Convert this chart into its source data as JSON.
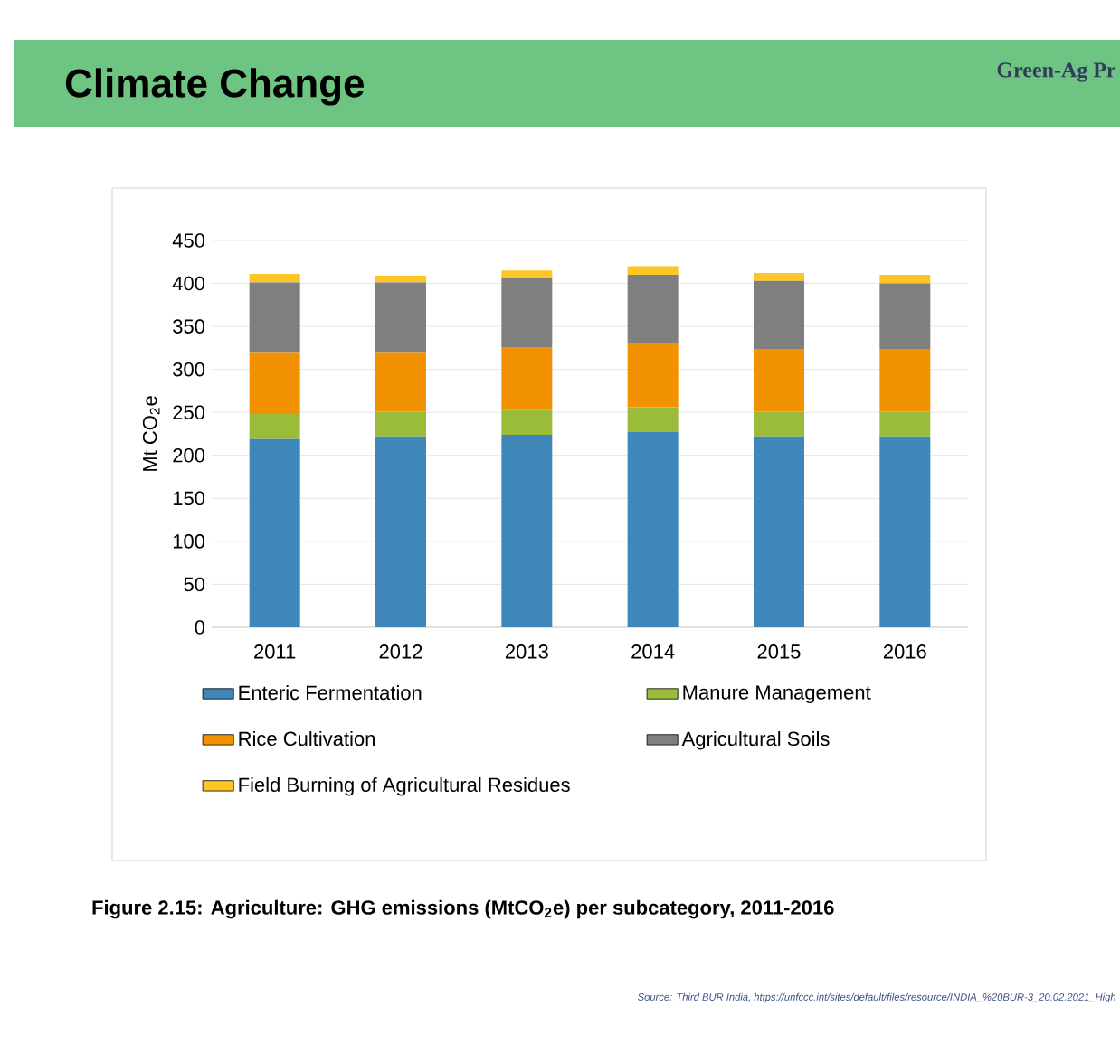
{
  "chart_data": {
    "type": "bar",
    "stacked": true,
    "title": "Climate Change",
    "ylabel": "Mt CO$_{2}$e",
    "categories": [
      "2011",
      "2012",
      "2013",
      "2014",
      "2015",
      "2016"
    ],
    "series": [
      {
        "name": "Enteric Fermentation",
        "color": "#3f87b9",
        "values": [
          219,
          222,
          224,
          227,
          222,
          222
        ]
      },
      {
        "name": "Manure Management",
        "color": "#9bbb3a",
        "values": [
          29,
          29,
          29,
          29,
          29,
          29
        ]
      },
      {
        "name": "Rice Cultivation",
        "color": "#f39200",
        "values": [
          72,
          69,
          73,
          74,
          72,
          72
        ]
      },
      {
        "name": "Agricultural Soils",
        "color": "#7f7f7f",
        "values": [
          81,
          81,
          80,
          80,
          80,
          77
        ]
      },
      {
        "name": "Field Burning of Agricultural Residues",
        "color": "#fdc624",
        "values": [
          10,
          8,
          9,
          10,
          9,
          10
        ]
      }
    ],
    "ylim": [
      0,
      450
    ],
    "yticks": [
      0,
      50,
      100,
      150,
      200,
      250,
      300,
      350,
      400,
      450
    ],
    "grid": "y",
    "legend": "bottom",
    "annotations": [
      "Figure 2.15: Agriculture: GHG emissions (MtCO$_{2}$e) per subcategory, 2011-2016",
      "Source: Third BUR India, https://unfccc.int/sites/default/files/resource/INDIA_%20BUR-3_20.02.2021_High",
      "Green-Ag Pr"
    ]
  }
}
